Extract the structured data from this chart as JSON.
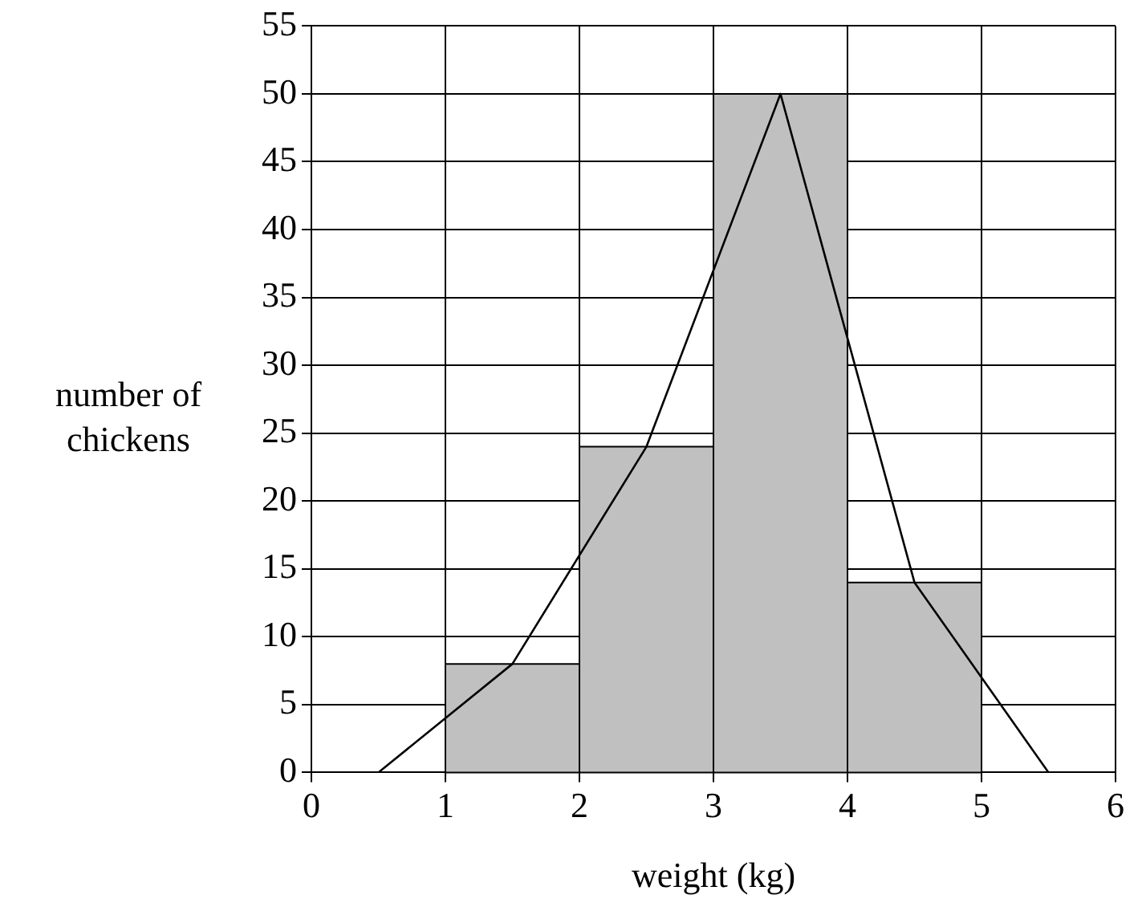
{
  "chart_data": {
    "type": "histogram",
    "xlabel": "weight (kg)",
    "ylabel": "number of chickens",
    "bins": [
      1,
      2,
      3,
      4,
      5
    ],
    "values": [
      8,
      24,
      50,
      14
    ],
    "color": "#c0c0c0",
    "series": [
      {
        "type": "line",
        "x": [
          0.5,
          1.5,
          2.5,
          3.5,
          4.5,
          5.5
        ],
        "values": [
          0,
          8,
          24,
          50,
          14,
          0
        ],
        "color": "#000000"
      }
    ],
    "xlim": [
      0,
      6
    ],
    "xticks": [
      0,
      1,
      2,
      3,
      4,
      5,
      6
    ],
    "ylim": [
      0,
      55
    ],
    "yticks": [
      0,
      5,
      10,
      15,
      20,
      25,
      30,
      35,
      40,
      45,
      50,
      55
    ],
    "grid": true,
    "marker": "none"
  }
}
